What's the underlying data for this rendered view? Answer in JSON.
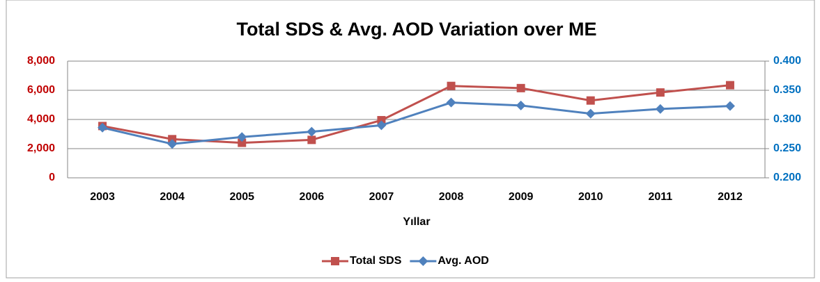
{
  "chart_data": {
    "type": "line",
    "title": "Total SDS & Avg. AOD Variation over ME",
    "x_label": "Yıllar",
    "categories": [
      "2003",
      "2004",
      "2005",
      "2006",
      "2007",
      "2008",
      "2009",
      "2010",
      "2011",
      "2012"
    ],
    "series": [
      {
        "name": "Total SDS",
        "color": "#c0504d",
        "marker": "square",
        "values": [
          3550,
          2650,
          2400,
          2600,
          3950,
          6300,
          6150,
          5300,
          5850,
          6350
        ]
      },
      {
        "name": "Avg. AOD",
        "color": "#4f81bd",
        "marker": "diamond",
        "axis": "y2",
        "values": [
          0.286,
          0.258,
          0.27,
          0.279,
          0.29,
          0.329,
          0.324,
          0.31,
          0.318,
          0.323
        ]
      }
    ],
    "ylim": [
      0,
      8000
    ],
    "yticks": [
      0,
      {
        "value": 2000,
        "label": "2,000"
      },
      {
        "value": 4000,
        "label": "4,000"
      },
      {
        "value": 6000,
        "label": "6,000"
      },
      {
        "value": 8000,
        "label": "8,000"
      }
    ],
    "y_color": "#c00000",
    "y2lim": [
      0.2,
      0.4
    ],
    "y2ticks": [
      {
        "value": 0.2,
        "label": "0.200"
      },
      {
        "value": 0.25,
        "label": "0.250"
      },
      {
        "value": 0.3,
        "label": "0.300"
      },
      {
        "value": 0.35,
        "label": "0.350"
      },
      {
        "value": 0.4,
        "label": "0.400"
      }
    ],
    "y2_color": "#0070c0",
    "grid": true,
    "legend": "bottom"
  }
}
